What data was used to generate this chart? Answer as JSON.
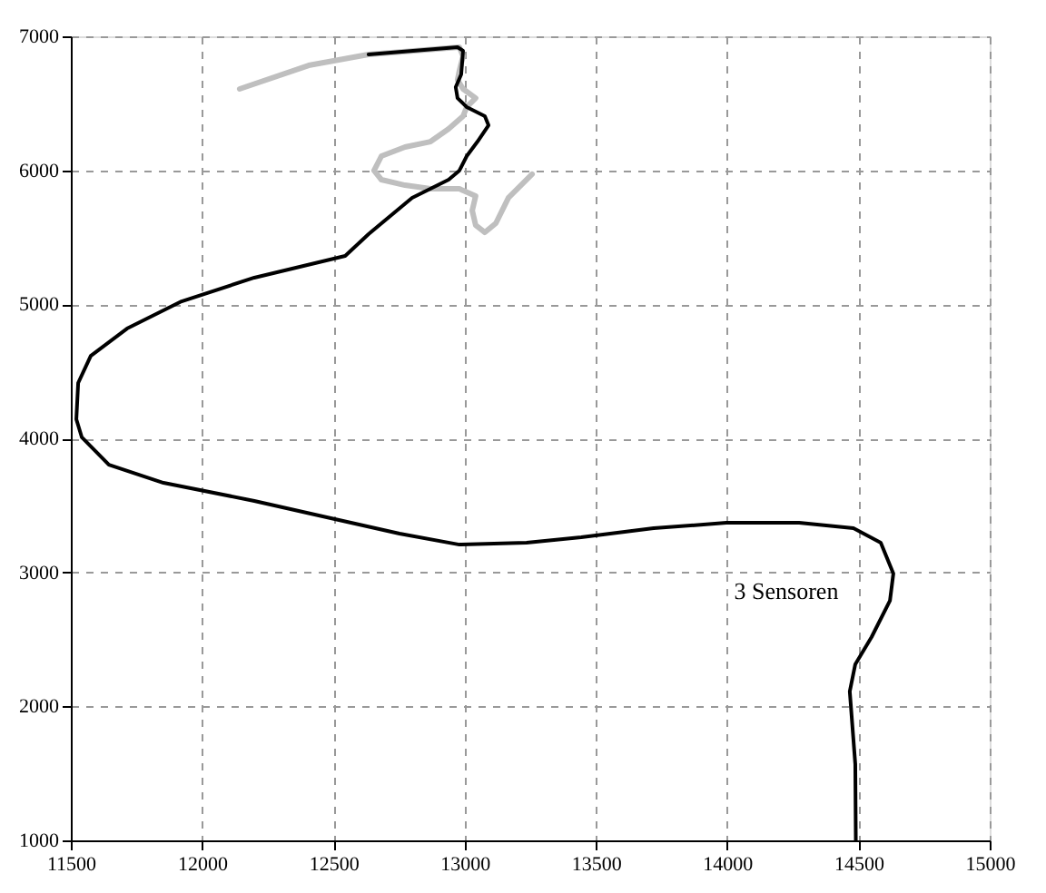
{
  "chart_data": {
    "type": "line",
    "series": [
      {
        "color": "#bfbfbf",
        "x": [
          13257,
          13167,
          13119,
          13077,
          13042,
          13029,
          13042,
          12980,
          12870,
          12773,
          12683,
          12655,
          12683,
          12773,
          12870,
          12939,
          12994,
          13008,
          13042,
          12994,
          12973,
          12980,
          12994,
          12980,
          12634,
          12406,
          12143
        ],
        "values": [
          5971,
          5795,
          5605,
          5537,
          5591,
          5700,
          5808,
          5862,
          5862,
          5889,
          5930,
          5998,
          6106,
          6174,
          6214,
          6309,
          6404,
          6472,
          6539,
          6607,
          6675,
          6743,
          6851,
          6919,
          6865,
          6783,
          6607
        ]
      },
      {
        "color": "#000000",
        "x": [
          14490,
          14488,
          14467,
          14488,
          14550,
          14620,
          14633,
          14585,
          14481,
          14274,
          13997,
          13720,
          13444,
          13236,
          12980,
          12752,
          12475,
          12199,
          11853,
          11645,
          11542,
          11521,
          11528,
          11576,
          11714,
          11922,
          12199,
          12545,
          12634,
          12800,
          12939,
          12980,
          13008,
          13049,
          13091,
          13077,
          13008,
          12973,
          12966,
          12987,
          12994,
          12973,
          12634
        ],
        "values": [
          1000,
          1569,
          2111,
          2314,
          2517,
          2788,
          2991,
          3221,
          3329,
          3370,
          3370,
          3329,
          3262,
          3221,
          3207,
          3289,
          3411,
          3533,
          3668,
          3803,
          4007,
          4142,
          4413,
          4616,
          4819,
          5022,
          5199,
          5361,
          5524,
          5795,
          5930,
          5998,
          6106,
          6214,
          6336,
          6404,
          6472,
          6539,
          6621,
          6716,
          6892,
          6919,
          6865
        ]
      }
    ],
    "xlim": [
      11500,
      15000
    ],
    "xticks": [
      11500,
      12000,
      12500,
      13000,
      13500,
      14000,
      14500,
      15000
    ],
    "ylim": [
      1000,
      7000
    ],
    "yticks": [
      1000,
      2000,
      3000,
      4000,
      5000,
      6000,
      7000
    ],
    "grid": true,
    "line_style": "solid",
    "marker": "none",
    "annotations": [
      "3 Sensoren"
    ]
  }
}
